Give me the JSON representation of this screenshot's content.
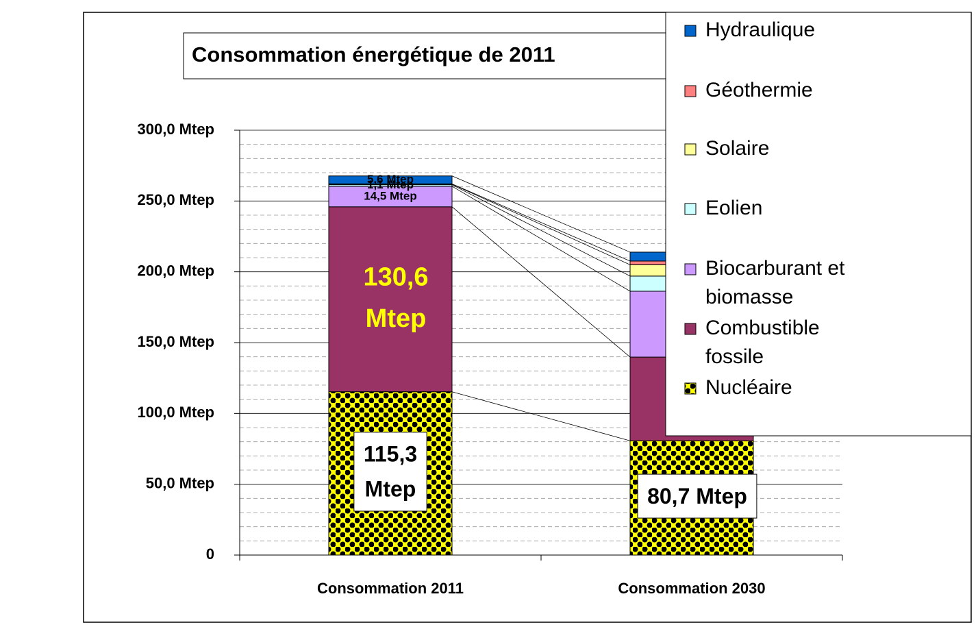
{
  "chart_data": {
    "type": "stacked_bar",
    "title": "Consommation énergétique de 2011",
    "categories": [
      "Consommation 2011",
      "Consommation 2030"
    ],
    "series": [
      {
        "name": "Nucléaire",
        "color": "#ffff00",
        "pattern": "dots",
        "values": [
          115.3,
          80.7
        ],
        "value_labels": [
          "115,3 Mtep",
          "80,7 Mtep"
        ]
      },
      {
        "name": "Combustible fossile",
        "color": "#993366",
        "values": [
          130.6,
          59.1
        ],
        "value_labels": [
          "130,6 Mtep",
          null
        ]
      },
      {
        "name": "Biocarburant et biomasse",
        "color": "#cc99ff",
        "values": [
          14.5,
          46.5
        ],
        "value_labels": [
          "14,5 Mtep",
          null
        ]
      },
      {
        "name": "Eolien",
        "color": "#ccffff",
        "values": [
          1.1,
          10.7
        ],
        "value_labels": [
          "1,1 Mtep",
          null
        ]
      },
      {
        "name": "Solaire",
        "color": "#ffff99",
        "values": [
          0.4,
          8.0
        ],
        "value_labels": [
          null,
          null
        ]
      },
      {
        "name": "Géothermie",
        "color": "#ff8080",
        "values": [
          0.2,
          2.6
        ],
        "value_labels": [
          null,
          null
        ]
      },
      {
        "name": "Hydraulique",
        "color": "#0066cc",
        "values": [
          5.6,
          6.3
        ],
        "value_labels": [
          "5,6 Mtep",
          null
        ]
      }
    ],
    "ylim": [
      0,
      300
    ],
    "yticks": [
      0,
      {
        "value": 50,
        "label": "50,0 Mtep"
      },
      {
        "value": 100,
        "label": "100,0 Mtep"
      },
      {
        "value": 150,
        "label": "150,0 Mtep"
      },
      {
        "value": 200,
        "label": "200,0 Mtep"
      },
      {
        "value": 250,
        "label": "250,0 Mtep"
      },
      {
        "value": 300,
        "label": "300,0 Mtep"
      }
    ],
    "grid": true,
    "series_lines": true,
    "legend": "right"
  }
}
